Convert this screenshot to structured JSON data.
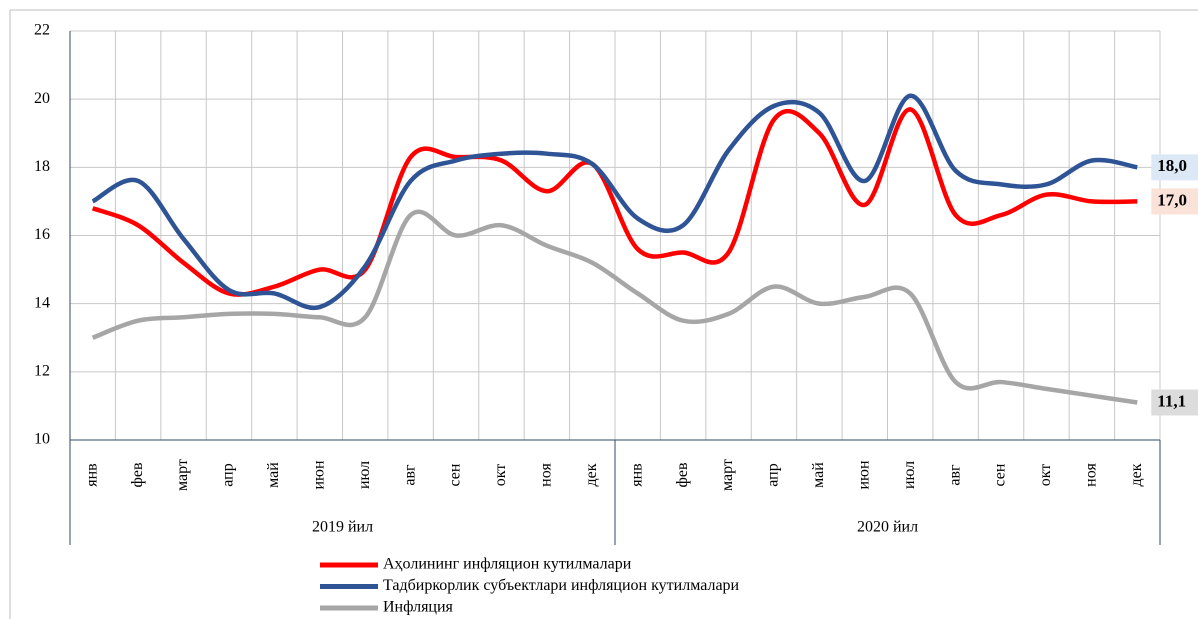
{
  "chart_data": {
    "type": "line",
    "groups": [
      {
        "label": "2019 йил",
        "categories": [
          "янв",
          "фев",
          "март",
          "апр",
          "май",
          "июн",
          "июл",
          "авг",
          "сен",
          "окт",
          "ноя",
          "дек"
        ]
      },
      {
        "label": "2020 йил",
        "categories": [
          "янв",
          "фев",
          "март",
          "апр",
          "май",
          "июн",
          "июл",
          "авг",
          "сен",
          "окт",
          "ноя",
          "дек"
        ]
      }
    ],
    "ylim": [
      10,
      22
    ],
    "yticks": [
      10,
      12,
      14,
      16,
      18,
      20,
      22
    ],
    "grid": true,
    "smooth": true,
    "series": [
      {
        "name": "Аҳолининг инфляцион кутилмалари",
        "color": "#ff0000",
        "values": [
          16.8,
          16.3,
          15.2,
          14.3,
          14.5,
          15.0,
          15.0,
          18.3,
          18.3,
          18.2,
          17.3,
          18.1,
          15.6,
          15.5,
          15.5,
          19.4,
          19.0,
          16.9,
          19.7,
          16.6,
          16.6,
          17.2,
          17.0,
          17.0
        ],
        "value_labels": [
          null,
          null,
          null,
          null,
          null,
          null,
          null,
          null,
          null,
          null,
          null,
          null,
          null,
          null,
          null,
          null,
          null,
          null,
          null,
          null,
          null,
          null,
          null,
          "17,0"
        ],
        "label_bg": "#fbe2d8"
      },
      {
        "name": "Тадбиркорлик субъектлари инфляцион кутилмалари",
        "color": "#2e5496",
        "values": [
          17.0,
          17.6,
          15.9,
          14.4,
          14.3,
          13.9,
          15.1,
          17.6,
          18.2,
          18.4,
          18.4,
          18.1,
          16.5,
          16.3,
          18.5,
          19.8,
          19.6,
          17.6,
          20.1,
          17.9,
          17.5,
          17.5,
          18.2,
          18.0
        ],
        "value_labels": [
          null,
          null,
          null,
          null,
          null,
          null,
          null,
          null,
          null,
          null,
          null,
          null,
          null,
          null,
          null,
          null,
          null,
          null,
          null,
          null,
          null,
          null,
          null,
          "18,0"
        ],
        "label_bg": "#dde8f6"
      },
      {
        "name": "Инфляция",
        "color": "#a6a6a6",
        "values": [
          13.0,
          13.5,
          13.6,
          13.7,
          13.7,
          13.6,
          13.6,
          16.6,
          16.0,
          16.3,
          15.7,
          15.2,
          14.3,
          13.5,
          13.7,
          14.5,
          14.0,
          14.2,
          14.3,
          11.7,
          11.7,
          11.5,
          11.3,
          11.1
        ],
        "value_labels": [
          null,
          null,
          null,
          null,
          null,
          null,
          null,
          null,
          null,
          null,
          null,
          null,
          null,
          null,
          null,
          null,
          null,
          null,
          null,
          null,
          null,
          null,
          null,
          "11,1"
        ],
        "label_bg": "#dcdcdc"
      }
    ]
  }
}
